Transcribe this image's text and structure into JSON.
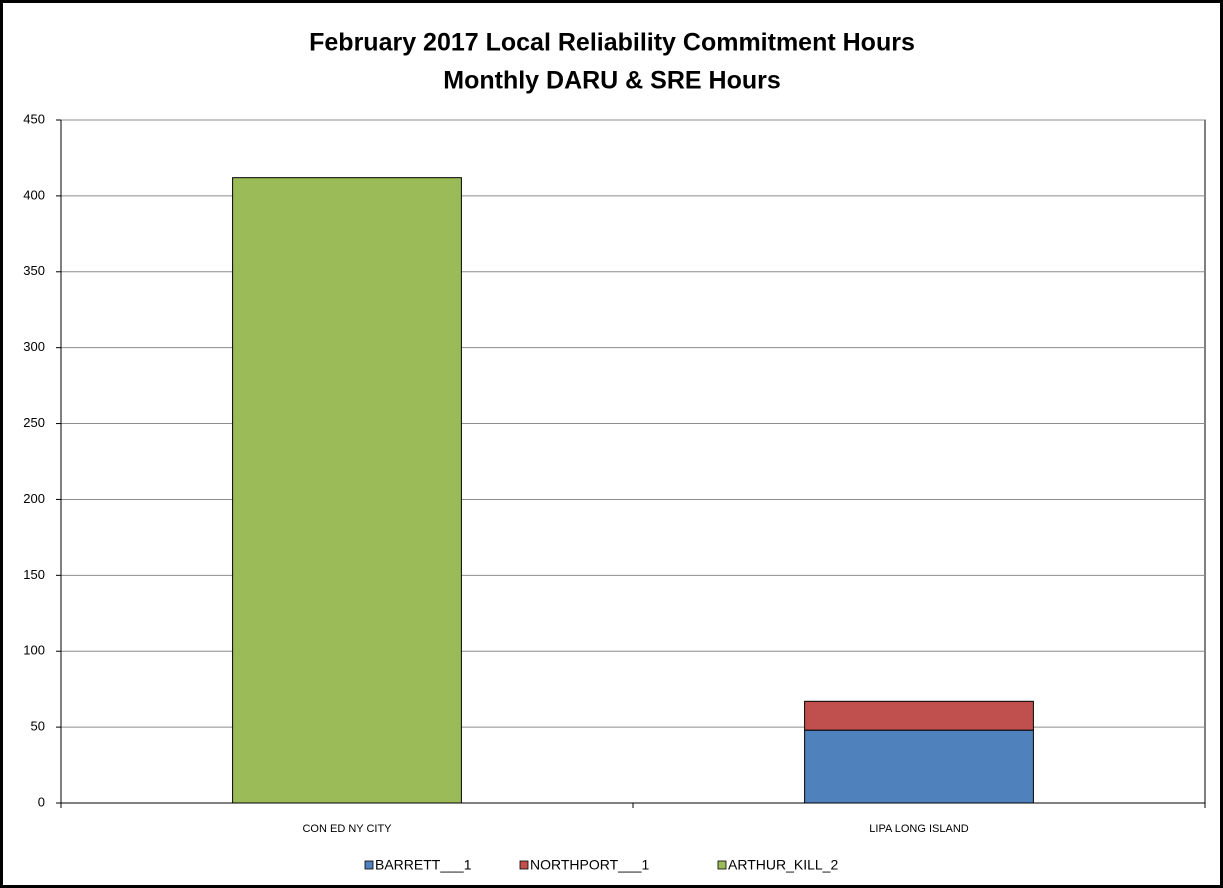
{
  "chart_data": {
    "type": "stacked_bar",
    "title": "February 2017 Local Reliability Commitment Hours",
    "subtitle": "Monthly DARU & SRE Hours",
    "categories": [
      "CON ED NY CITY",
      "LIPA LONG ISLAND"
    ],
    "series": [
      {
        "name": "BARRETT___1",
        "color": "#4f81bd",
        "values": [
          null,
          48
        ]
      },
      {
        "name": "NORTHPORT___1",
        "color": "#c0504d",
        "values": [
          null,
          19
        ]
      },
      {
        "name": "ARTHUR_KILL_2",
        "color": "#9bbb59",
        "values": [
          412,
          null
        ]
      }
    ],
    "ylim": [
      0,
      450
    ],
    "yticks": [
      0,
      50,
      100,
      150,
      200,
      250,
      300,
      350,
      400,
      450
    ],
    "grid": true,
    "legend": "bottom"
  }
}
